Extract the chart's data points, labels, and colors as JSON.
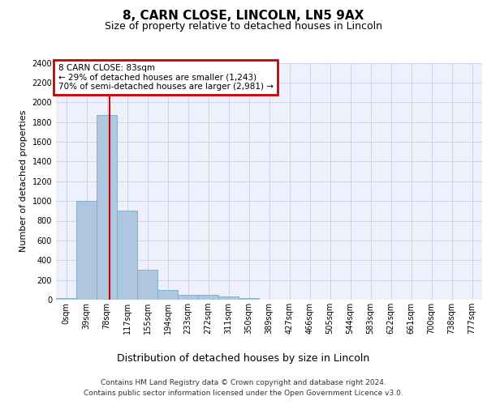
{
  "title": "8, CARN CLOSE, LINCOLN, LN5 9AX",
  "subtitle": "Size of property relative to detached houses in Lincoln",
  "xlabel": "Distribution of detached houses by size in Lincoln",
  "ylabel": "Number of detached properties",
  "footer_line1": "Contains HM Land Registry data © Crown copyright and database right 2024.",
  "footer_line2": "Contains public sector information licensed under the Open Government Licence v3.0.",
  "bin_labels": [
    "0sqm",
    "39sqm",
    "78sqm",
    "117sqm",
    "155sqm",
    "194sqm",
    "233sqm",
    "272sqm",
    "311sqm",
    "350sqm",
    "389sqm",
    "427sqm",
    "466sqm",
    "505sqm",
    "544sqm",
    "583sqm",
    "622sqm",
    "661sqm",
    "700sqm",
    "738sqm",
    "777sqm"
  ],
  "bar_values": [
    20,
    1000,
    1870,
    900,
    305,
    100,
    50,
    50,
    30,
    20,
    0,
    0,
    0,
    0,
    0,
    0,
    0,
    0,
    0,
    0,
    0
  ],
  "bar_color": "#aec6df",
  "bar_edge_color": "#7aaac8",
  "property_line_x": 83,
  "property_sqm": 83,
  "annotation_text_line1": "8 CARN CLOSE: 83sqm",
  "annotation_text_line2": "← 29% of detached houses are smaller (1,243)",
  "annotation_text_line3": "70% of semi-detached houses are larger (2,981) →",
  "annotation_box_color": "#cc0000",
  "ylim": [
    0,
    2400
  ],
  "yticks": [
    0,
    200,
    400,
    600,
    800,
    1000,
    1200,
    1400,
    1600,
    1800,
    2000,
    2200,
    2400
  ],
  "bin_width": 39,
  "background_color": "#eef1fb",
  "grid_color": "#cdd3ec",
  "title_fontsize": 11,
  "subtitle_fontsize": 9,
  "ylabel_fontsize": 8,
  "xlabel_fontsize": 9,
  "tick_fontsize": 7,
  "footer_fontsize": 6.5
}
